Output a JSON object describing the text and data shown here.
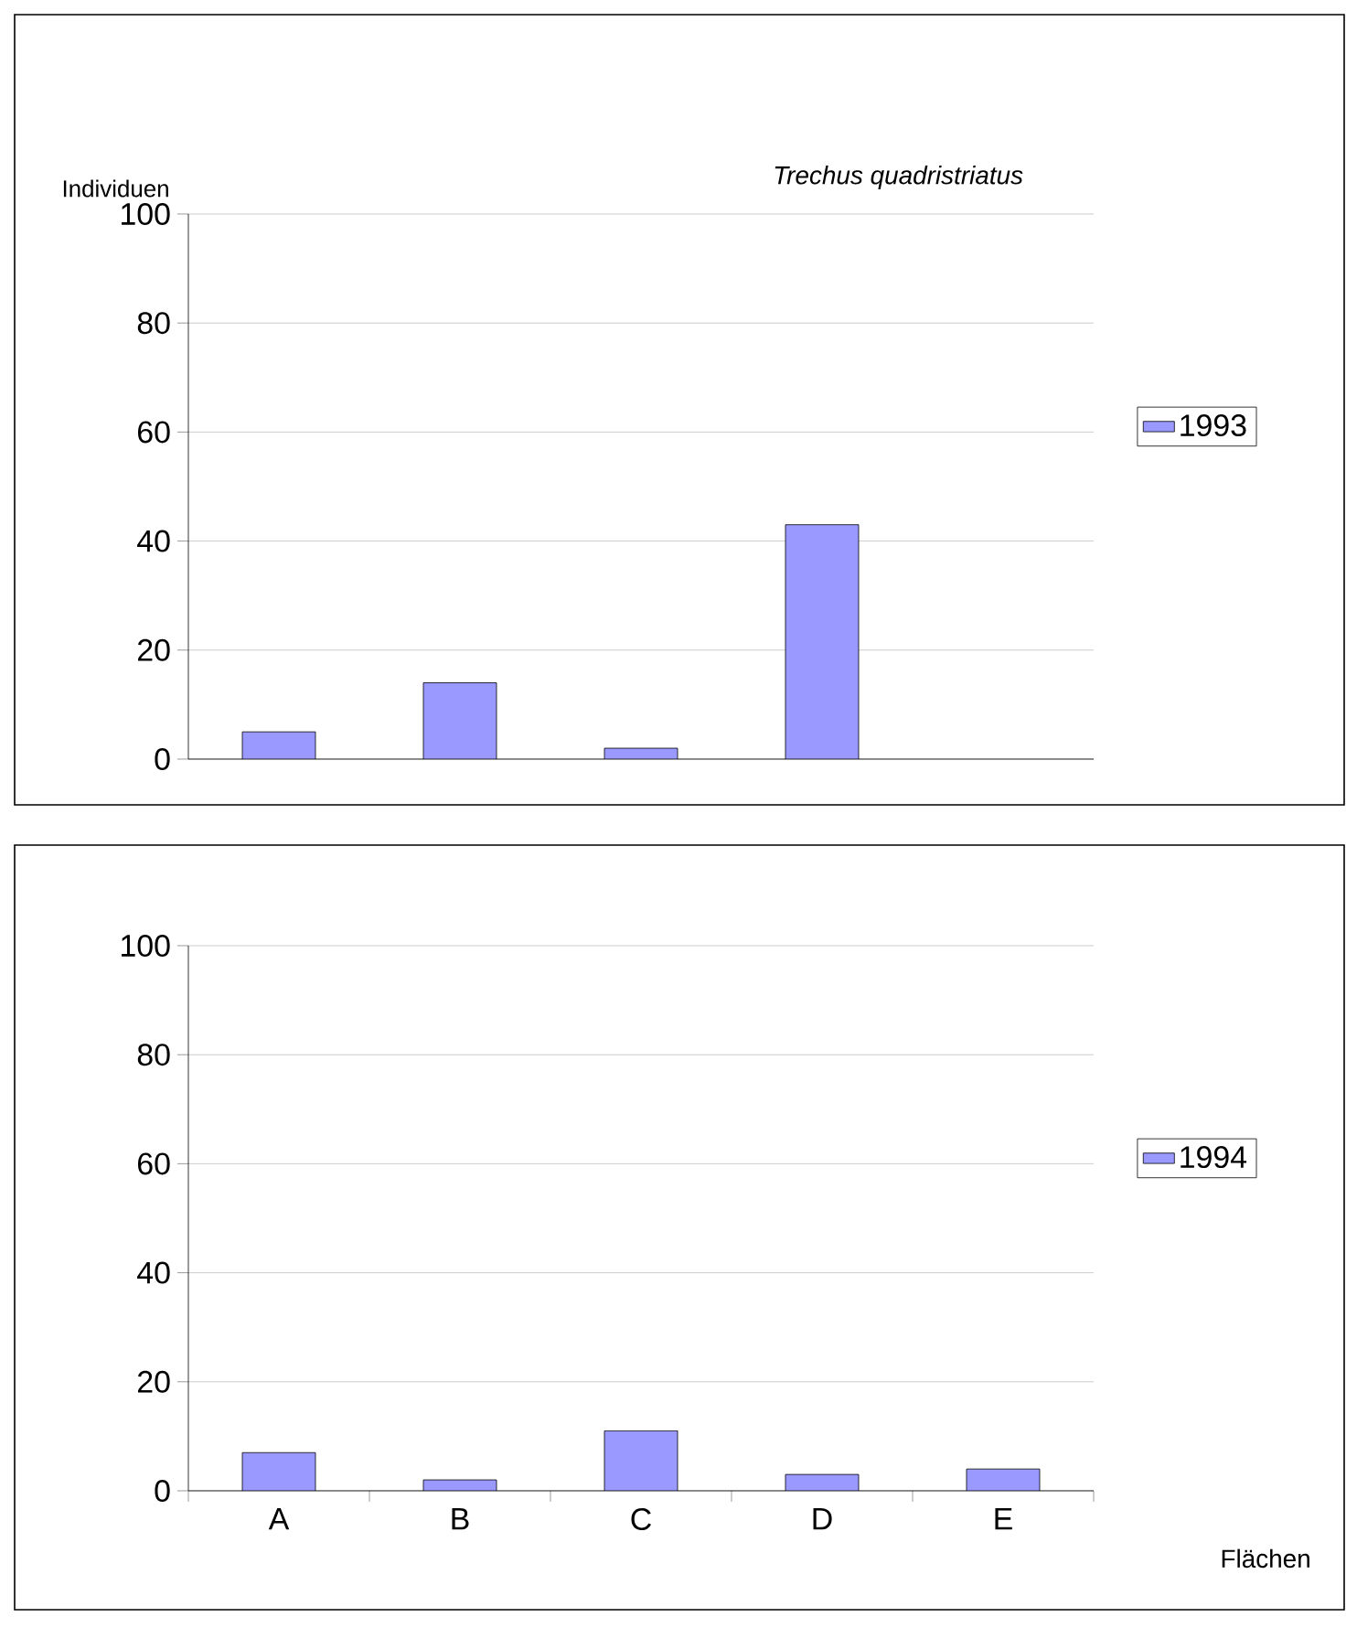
{
  "chart_data": [
    {
      "type": "bar",
      "title": "*Trechus quadristriatus*",
      "ylabel": "Individuen",
      "categories": [
        null,
        null,
        null,
        null,
        null
      ],
      "series": [
        {
          "name": "1993",
          "color": "#9999ff",
          "values": [
            5,
            14,
            2,
            43,
            null
          ]
        }
      ],
      "ylim": [
        0,
        100
      ],
      "yticks": [
        0,
        20,
        40,
        60,
        80,
        100
      ],
      "grid": "y",
      "legend": "right"
    },
    {
      "type": "bar",
      "xlabel": "Flächen",
      "categories": [
        "A",
        "B",
        "C",
        "D",
        "E"
      ],
      "series": [
        {
          "name": "1994",
          "color": "#9999ff",
          "values": [
            7,
            2,
            11,
            3,
            4
          ]
        }
      ],
      "ylim": [
        0,
        100
      ],
      "yticks": [
        0,
        20,
        40,
        60,
        80,
        100
      ],
      "grid": "y",
      "legend": "right"
    }
  ]
}
